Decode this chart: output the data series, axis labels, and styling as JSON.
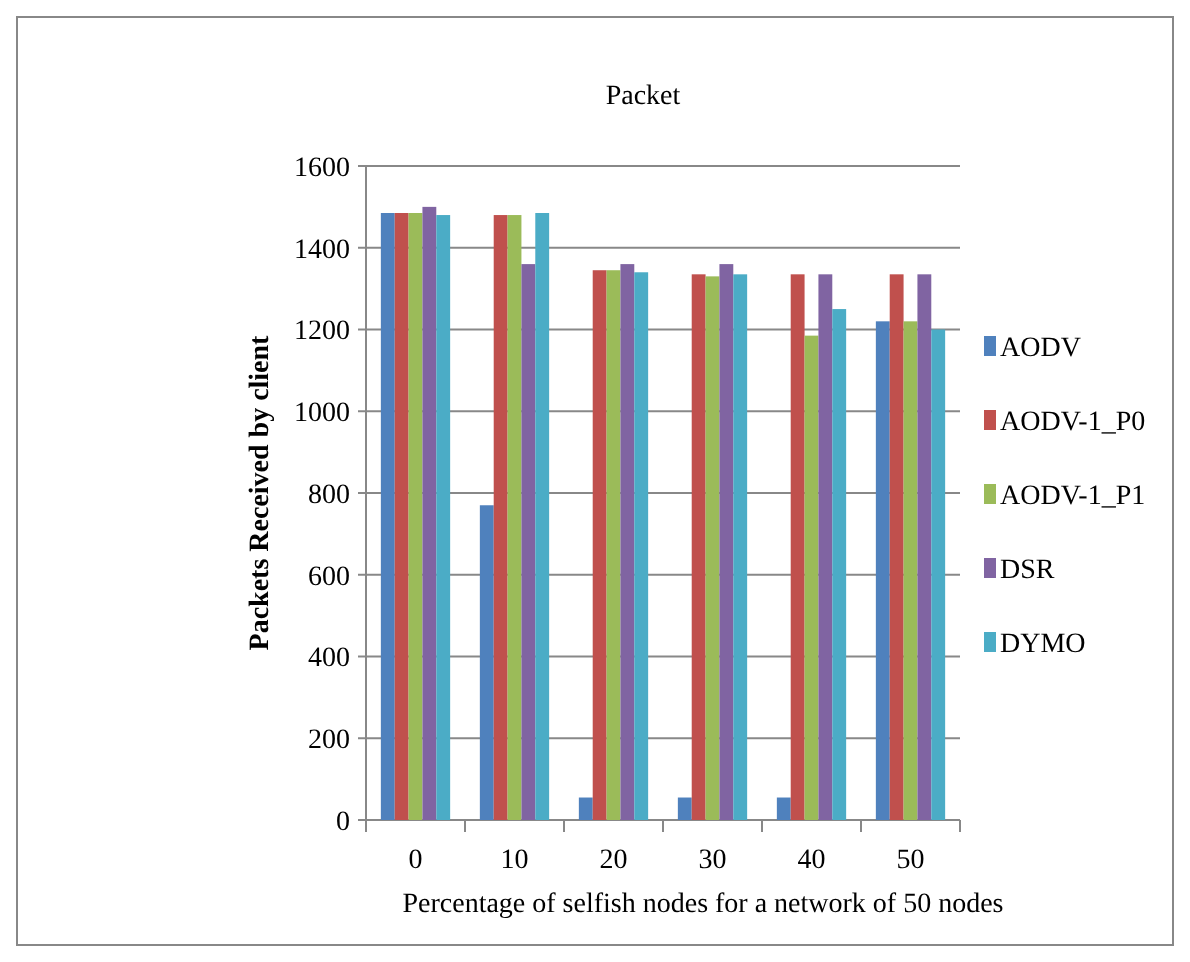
{
  "chart_data": {
    "type": "bar",
    "title": "Packet",
    "xlabel": "Percentage of selfish nodes for a  network of 50 nodes",
    "ylabel": "Packets Received by client",
    "categories": [
      "0",
      "10",
      "20",
      "30",
      "40",
      "50"
    ],
    "series": [
      {
        "name": "AODV",
        "color": "#4f81bd",
        "values": [
          1485,
          770,
          55,
          55,
          55,
          1220
        ]
      },
      {
        "name": "AODV-1_P0",
        "color": "#c0504d",
        "values": [
          1485,
          1480,
          1345,
          1335,
          1335,
          1335
        ]
      },
      {
        "name": "AODV-1_P1",
        "color": "#9bbb59",
        "values": [
          1485,
          1480,
          1345,
          1330,
          1185,
          1220
        ]
      },
      {
        "name": "DSR",
        "color": "#8064a2",
        "values": [
          1500,
          1360,
          1360,
          1360,
          1335,
          1335
        ]
      },
      {
        "name": "DYMO",
        "color": "#4bacc6",
        "values": [
          1480,
          1485,
          1340,
          1335,
          1250,
          1200
        ]
      }
    ],
    "ylim": [
      0,
      1600
    ],
    "yticks": [
      0,
      200,
      400,
      600,
      800,
      1000,
      1200,
      1400,
      1600
    ],
    "grid": "y",
    "legend": "right"
  }
}
